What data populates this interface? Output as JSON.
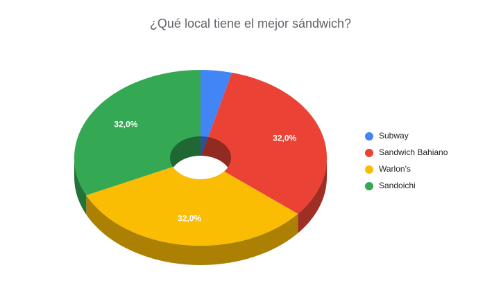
{
  "chart_data": {
    "type": "pie",
    "title": "¿Qué local tiene el mejor sándwich?",
    "categories": [
      "Subway",
      "Sandwich Bahiano",
      "Warlon's",
      "Sandoichi"
    ],
    "values": [
      4,
      32,
      32,
      32
    ],
    "value_labels": [
      null,
      "32,0%",
      "32,0%",
      "32,0%"
    ],
    "colors": [
      "#4285f4",
      "#ea4335",
      "#fbbc04",
      "#34a853"
    ],
    "legend": "right"
  }
}
